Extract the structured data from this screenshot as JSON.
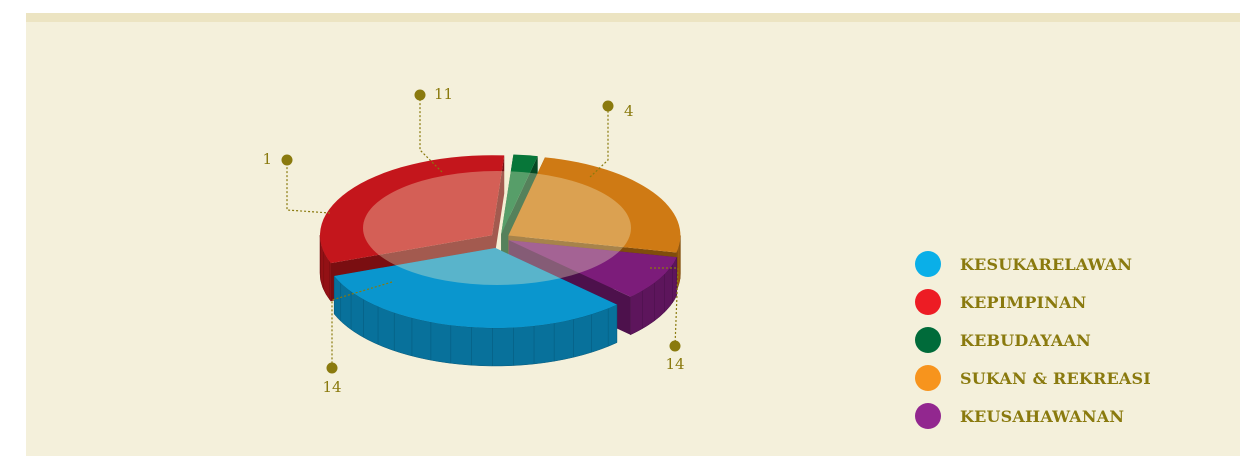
{
  "chart_data": {
    "type": "pie",
    "style": "3d-exploded",
    "slices": [
      {
        "label": "KESUKARELAWAN",
        "value": 14,
        "color": "#0a96ce"
      },
      {
        "label": "KEPIMPINAN",
        "value": 14,
        "color": "#c4161c"
      },
      {
        "label": "KEBUDAYAAN",
        "value": 1,
        "color": "#077639"
      },
      {
        "label": "SUKAN & REKREASI",
        "value": 11,
        "color": "#cf7a14"
      },
      {
        "label": "KEUSAHAWANAN",
        "value": 4,
        "color": "#7c1c7a"
      }
    ],
    "legend_position": "right",
    "label_color": "#8a7a0e"
  },
  "legend": [
    {
      "label": "KESUKARELAWAN",
      "color": "#0aafe8"
    },
    {
      "label": "KEPIMPINAN",
      "color": "#ed1c24"
    },
    {
      "label": "KEBUDAYAAN",
      "color": "#006b3a"
    },
    {
      "label": "SUKAN & REKREASI",
      "color": "#f7941d"
    },
    {
      "label": "KEUSAHAWANAN",
      "color": "#92278f"
    }
  ]
}
